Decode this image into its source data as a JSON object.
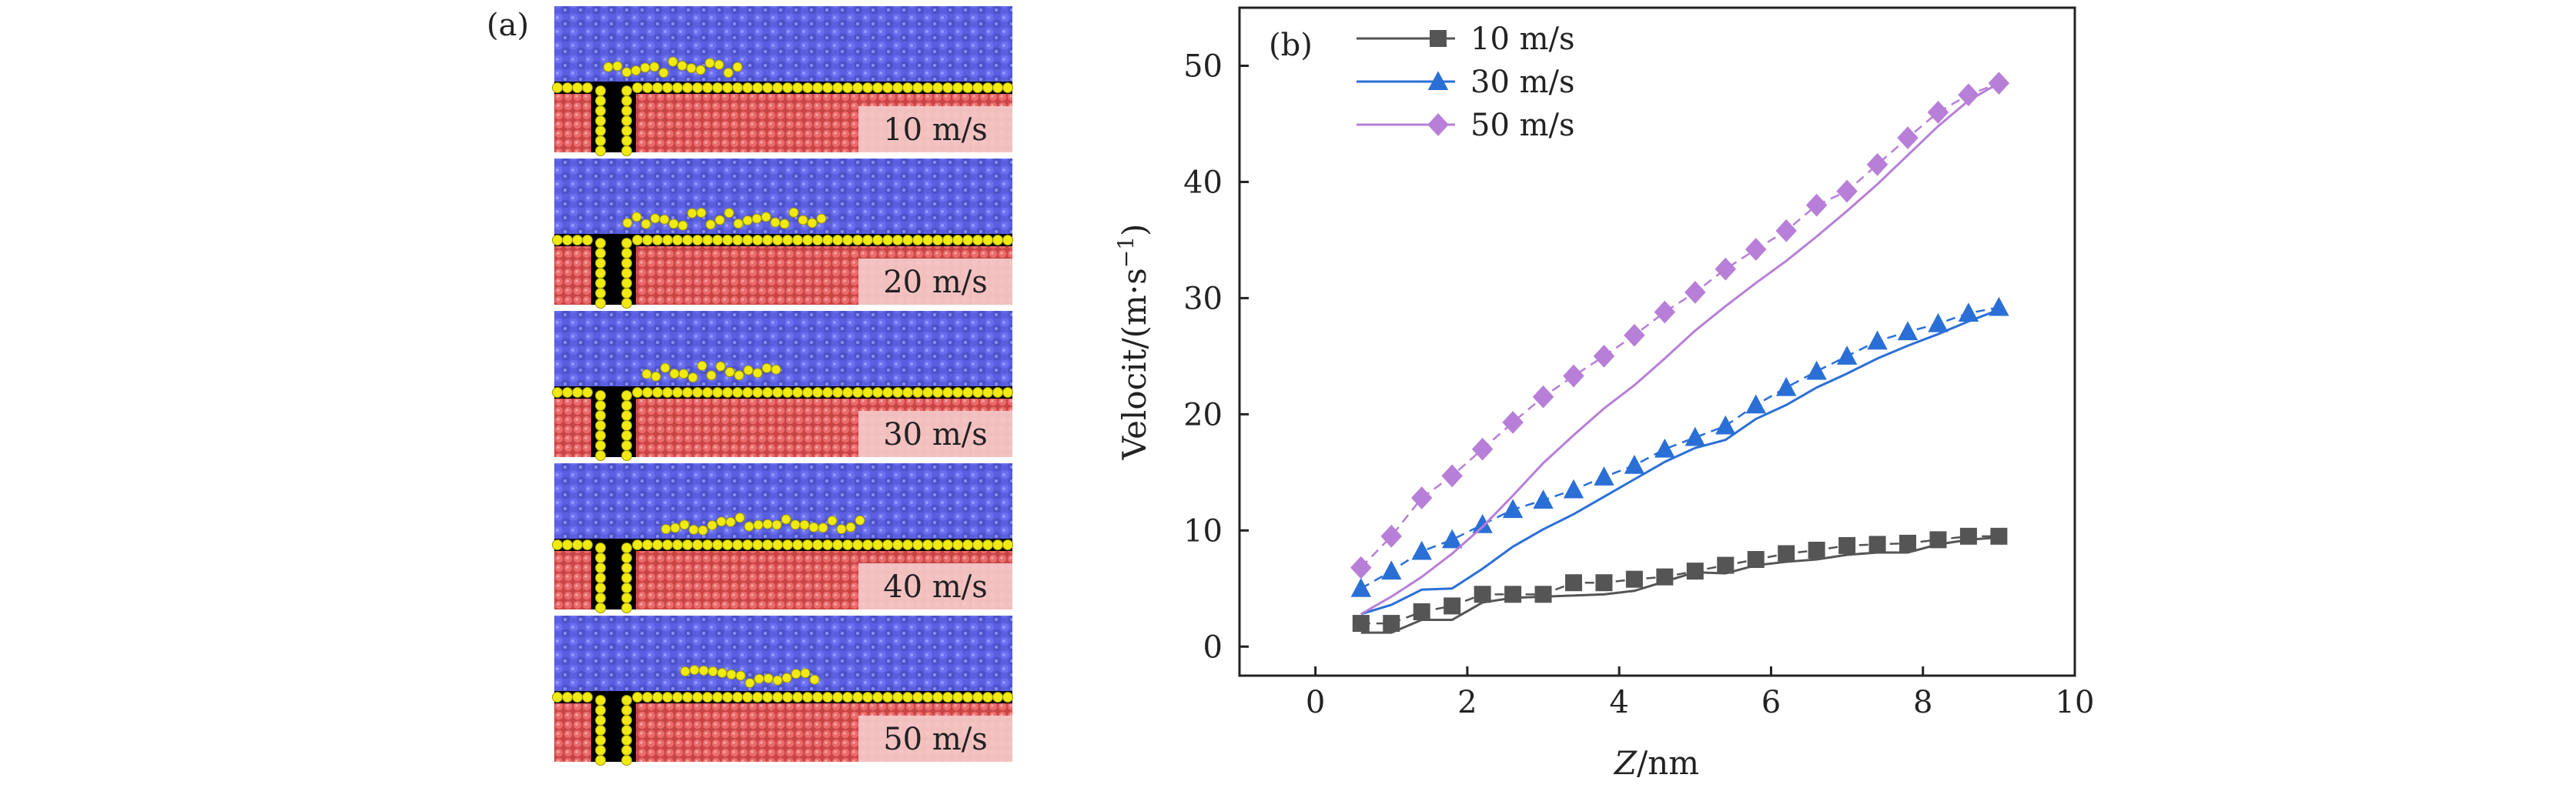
{
  "panel_a": {
    "label": "(a)",
    "frames": [
      {
        "speed_label": "10 m/s"
      },
      {
        "speed_label": "20 m/s"
      },
      {
        "speed_label": "30 m/s"
      },
      {
        "speed_label": "40 m/s"
      },
      {
        "speed_label": "50 m/s"
      }
    ],
    "colors": {
      "liquid": "#5a5fe0",
      "wall": "#e85a5a",
      "interface": "#f0ea10",
      "gap": "#000000",
      "label_box": "#f4c9c9"
    }
  },
  "chart_data": {
    "type": "line",
    "panel_label": "(b)",
    "xlabel_var": "Z",
    "xlabel_unit": "/nm",
    "ylabel": "Velocit/(m·s",
    "ylabel_sup": "−1",
    "ylabel_close": ")",
    "xlim": [
      -1,
      10
    ],
    "ylim": [
      -2.5,
      55
    ],
    "xticks": [
      0,
      2,
      4,
      6,
      8,
      10
    ],
    "yticks": [
      0,
      10,
      20,
      30,
      40,
      50
    ],
    "grid": false,
    "legend_position": "top-left",
    "x": [
      0.6,
      1.0,
      1.4,
      1.8,
      2.2,
      2.6,
      3.0,
      3.4,
      3.8,
      4.2,
      4.6,
      5.0,
      5.4,
      5.8,
      6.2,
      6.6,
      7.0,
      7.4,
      7.8,
      8.2,
      8.6,
      9.0
    ],
    "series": [
      {
        "name": "10 m/s",
        "color": "#555555",
        "marker": "square",
        "values": [
          2.0,
          2.0,
          3.0,
          3.5,
          4.5,
          4.5,
          4.5,
          5.5,
          5.5,
          5.8,
          6.0,
          6.5,
          7.0,
          7.5,
          8.0,
          8.3,
          8.7,
          8.8,
          8.9,
          9.2,
          9.5,
          9.5
        ],
        "line_values": [
          1.2,
          1.2,
          2.3,
          2.3,
          3.8,
          4.2,
          4.3,
          4.4,
          4.5,
          4.8,
          5.6,
          6.4,
          6.3,
          7.0,
          7.3,
          7.5,
          7.9,
          8.1,
          8.1,
          8.8,
          9.2,
          9.4
        ]
      },
      {
        "name": "30 m/s",
        "color": "#2a6fd6",
        "marker": "triangle",
        "values": [
          5.0,
          6.5,
          8.2,
          9.2,
          10.5,
          11.8,
          12.6,
          13.5,
          14.6,
          15.6,
          17.0,
          18.0,
          19.0,
          20.8,
          22.3,
          23.7,
          25.0,
          26.3,
          27.1,
          27.8,
          28.7,
          29.2
        ],
        "line_values": [
          2.8,
          3.6,
          4.9,
          5.0,
          6.7,
          8.6,
          10.1,
          11.4,
          12.9,
          14.4,
          15.9,
          17.1,
          17.8,
          19.6,
          20.8,
          22.3,
          23.5,
          24.8,
          25.9,
          26.9,
          28.0,
          29.0
        ]
      },
      {
        "name": "50 m/s",
        "color": "#b77fd8",
        "marker": "diamond",
        "values": [
          6.8,
          9.5,
          12.8,
          14.7,
          17.0,
          19.3,
          21.5,
          23.3,
          25.0,
          26.8,
          28.8,
          30.5,
          32.5,
          34.2,
          35.8,
          38.0,
          39.2,
          41.5,
          43.8,
          46.0,
          47.5,
          48.5
        ],
        "line_values": [
          2.8,
          4.3,
          6.0,
          8.0,
          10.3,
          13.0,
          15.8,
          18.2,
          20.5,
          22.5,
          24.8,
          27.2,
          29.3,
          31.3,
          33.2,
          35.3,
          37.5,
          39.8,
          42.3,
          44.8,
          47.0,
          48.5
        ]
      }
    ]
  }
}
